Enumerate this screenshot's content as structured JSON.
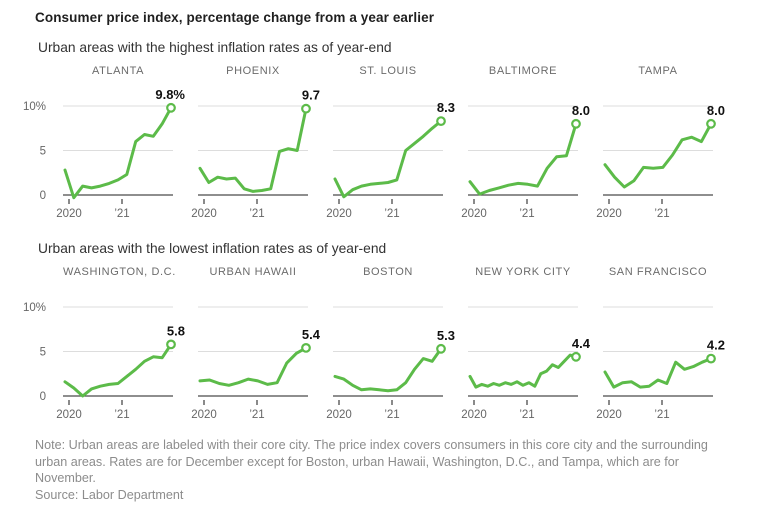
{
  "note": "Note: Urban areas are labeled with their core city. The price index covers consumers in this core city and the surrounding urban areas. Rates are for December except for Boston, urban Hawaii, Washington, D.C., and Tampa, which are for November.",
  "source": "Source: Labor Department",
  "colors": {
    "line": "#5cbb49",
    "marker_fill": "#ffffff",
    "grid": "#dddddd",
    "axis": "#4a4a4a",
    "value_label": "#111111",
    "tick_label": "#666666"
  },
  "chart_data": {
    "type": "line",
    "title": "Consumer price index, percentage change from a year earlier",
    "ylabel": "",
    "xlabel": "",
    "ylim": [
      0,
      10
    ],
    "grid_values": [
      10,
      5
    ],
    "y_ticks": [
      "10%",
      "5",
      "0"
    ],
    "x_ticks": [
      "2020",
      "’21"
    ],
    "x_range_note": "monthly/bimonthly, Jan 2020 through year-end 2021",
    "groups": [
      {
        "subtitle": "Urban areas with the highest inflation rates as of year-end",
        "charts": [
          {
            "name": "ATLANTA",
            "end_label": "9.8%",
            "end_value": 9.8,
            "values": [
              2.8,
              -0.3,
              1.0,
              0.8,
              1.0,
              1.3,
              1.7,
              2.3,
              6.0,
              6.8,
              6.6,
              8.0,
              9.8
            ]
          },
          {
            "name": "PHOENIX",
            "end_label": "9.7",
            "end_value": 9.7,
            "values": [
              3.0,
              1.4,
              2.0,
              1.8,
              1.9,
              0.7,
              0.4,
              0.5,
              0.7,
              4.9,
              5.2,
              5.0,
              9.7
            ]
          },
          {
            "name": "ST. LOUIS",
            "end_label": "8.3",
            "end_value": 8.3,
            "values": [
              1.8,
              -0.2,
              0.6,
              1.0,
              1.2,
              1.3,
              1.4,
              1.7,
              5.0,
              5.8,
              6.6,
              7.5,
              8.3
            ]
          },
          {
            "name": "BALTIMORE",
            "end_label": "8.0",
            "end_value": 8.0,
            "values": [
              1.5,
              0.1,
              0.5,
              0.8,
              1.1,
              1.3,
              1.2,
              1.0,
              3.0,
              4.3,
              4.4,
              8.0
            ]
          },
          {
            "name": "TAMPA",
            "end_label": "8.0",
            "end_value": 8.0,
            "values": [
              3.4,
              2.0,
              0.9,
              1.6,
              3.1,
              3.0,
              3.1,
              4.5,
              6.2,
              6.5,
              6.0,
              8.0
            ]
          }
        ]
      },
      {
        "subtitle": "Urban areas with the lowest inflation rates as of year-end",
        "charts": [
          {
            "name": "WASHINGTON, D.C.",
            "end_label": "5.8",
            "end_value": 5.8,
            "values": [
              1.6,
              0.9,
              0.0,
              0.8,
              1.1,
              1.3,
              1.4,
              2.2,
              3.0,
              3.9,
              4.4,
              4.3,
              5.8
            ]
          },
          {
            "name": "URBAN HAWAII",
            "end_label": "5.4",
            "end_value": 5.4,
            "values": [
              1.7,
              1.8,
              1.4,
              1.2,
              1.5,
              1.9,
              1.7,
              1.3,
              1.5,
              3.7,
              4.8,
              5.4
            ]
          },
          {
            "name": "BOSTON",
            "end_label": "5.3",
            "end_value": 5.3,
            "values": [
              2.2,
              1.9,
              1.2,
              0.7,
              0.8,
              0.7,
              0.6,
              0.7,
              1.5,
              3.0,
              4.2,
              3.9,
              5.3
            ]
          },
          {
            "name": "NEW YORK CITY",
            "end_label": "4.4",
            "end_value": 4.4,
            "values": [
              2.2,
              1.0,
              1.3,
              1.1,
              1.4,
              1.2,
              1.5,
              1.3,
              1.6,
              1.2,
              1.5,
              1.1,
              2.5,
              2.8,
              3.5,
              3.2,
              3.9,
              4.6,
              4.4
            ]
          },
          {
            "name": "SAN FRANCISCO",
            "end_label": "4.2",
            "end_value": 4.2,
            "values": [
              2.7,
              1.0,
              1.5,
              1.6,
              1.0,
              1.1,
              1.8,
              1.4,
              3.8,
              3.0,
              3.3,
              3.8,
              4.2
            ]
          }
        ]
      }
    ]
  }
}
